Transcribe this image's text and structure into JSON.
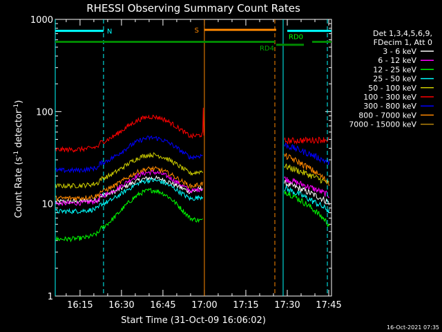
{
  "chart_data": {
    "type": "line",
    "title": "RHESSI Observing Summary Count Rates",
    "xlabel": "Start Time (31-Oct-09 16:06:02)",
    "ylabel": "Count Rate (s",
    "ylabel_sup": "-1",
    "ylabel_tail": " detector",
    "ylabel_end": ")",
    "yscale": "log",
    "ylim": [
      1,
      1000
    ],
    "xlim_min": [
      6.03,
      106.0
    ],
    "y_ticks": [
      {
        "v": 1,
        "label": "1"
      },
      {
        "v": 10,
        "label": "10"
      },
      {
        "v": 100,
        "label": "100"
      },
      {
        "v": 1000,
        "label": "1000"
      }
    ],
    "x_ticks": [
      {
        "v": 15,
        "label": "16:15"
      },
      {
        "v": 30,
        "label": "16:30"
      },
      {
        "v": 45,
        "label": "16:45"
      },
      {
        "v": 60,
        "label": "17:00"
      },
      {
        "v": 75,
        "label": "17:15"
      },
      {
        "v": 90,
        "label": "17:30"
      },
      {
        "v": 105,
        "label": "17:45"
      }
    ],
    "legend_header": [
      "Det 1,3,4,5,6,9,",
      "FDecim 1, Att 0"
    ],
    "series": [
      {
        "name": "3 - 6 keV",
        "color": "#ffffff",
        "pre_base": 11.5,
        "pre_peak": 19,
        "post_start": 17,
        "post_end": 10
      },
      {
        "name": "6 - 12 keV",
        "color": "#ff00ff",
        "pre_base": 11.0,
        "pre_peak": 22,
        "post_start": 19,
        "post_end": 12
      },
      {
        "name": "12 - 25 keV",
        "color": "#00ff00",
        "pre_base": 4.5,
        "pre_peak": 14,
        "post_start": 14,
        "post_end": 5.5
      },
      {
        "name": "25 - 50 keV",
        "color": "#00ffff",
        "pre_base": 9.0,
        "pre_peak": 18,
        "post_start": 15,
        "post_end": 8
      },
      {
        "name": "50 - 100 keV",
        "color": "#cccc00",
        "pre_base": 17.0,
        "pre_peak": 34,
        "post_start": 26,
        "post_end": 16
      },
      {
        "name": "100 - 300 keV",
        "color": "#ff0000",
        "pre_base": 42.0,
        "pre_peak": 88,
        "post_start": 48,
        "post_end": 50
      },
      {
        "name": "300 - 800 keV",
        "color": "#0000ff",
        "pre_base": 25.0,
        "pre_peak": 52,
        "post_start": 44,
        "post_end": 27
      },
      {
        "name": "800 - 7000 keV",
        "color": "#ff8800",
        "pre_base": 12.5,
        "pre_peak": 24,
        "post_start": 34,
        "post_end": 16
      },
      {
        "name": "7000 - 15000 keV",
        "color": "#b8860b",
        "pre_base": null,
        "pre_peak": null,
        "post_start": null,
        "post_end": null
      }
    ],
    "annotations": {
      "N": {
        "label": "N",
        "y": 750,
        "x_start": 6.03,
        "x_end": 23.5
      },
      "S": {
        "label": "S",
        "y": 770,
        "x_start": 60.0,
        "x_end": 86.0
      },
      "RD0": {
        "label": "RD0",
        "y": 750,
        "x_start": 90.0,
        "x_end": 106.0
      },
      "RD4": {
        "label": "RD4",
        "y": 530,
        "x_start": 86.0,
        "x_end": 96.0
      },
      "night_bar": {
        "y": 570,
        "x_start": 6.03,
        "x_end": 85.5,
        "x2_start": 99.0,
        "x2_end": 106.0
      }
    },
    "saa_lines": [
      {
        "x": 6.03,
        "color": "#00ffff",
        "dash": false
      },
      {
        "x": 23.5,
        "color": "#00ffff",
        "dash": true
      },
      {
        "x": 60.0,
        "color": "#ff8800",
        "dash": false
      },
      {
        "x": 85.5,
        "color": "#ff8800",
        "dash": true
      },
      {
        "x": 88.5,
        "color": "#00ffff",
        "dash": false
      },
      {
        "x": 104.5,
        "color": "#00ffff",
        "dash": true
      }
    ],
    "gap": [
      60.0,
      88.5
    ],
    "grid": false
  },
  "footer": {
    "timestamp": "16-Oct-2021 07:35"
  }
}
